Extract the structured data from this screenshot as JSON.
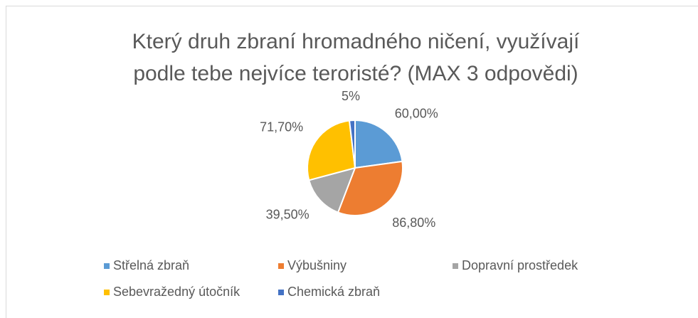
{
  "chart_data": {
    "type": "pie",
    "title": [
      "Který druh zbraní hromadného ničení, využívají",
      "podle tebe nejvíce teroristé? (MAX 3 odpovědi)"
    ],
    "categories": [
      "Střelná zbraň",
      "Výbušniny",
      "Dopravní prostředek",
      "Sebevražedný útočník",
      "Chemická zbraň"
    ],
    "values": [
      60,
      86.8,
      39.5,
      71.7,
      5
    ],
    "value_labels": [
      "60,00%",
      "86,80%",
      "39,50%",
      "71,70%",
      "5%"
    ],
    "colors": [
      "#5b9bd5",
      "#ed7d31",
      "#a5a5a5",
      "#ffc000",
      "#4472c4"
    ],
    "legend": "bottom"
  }
}
